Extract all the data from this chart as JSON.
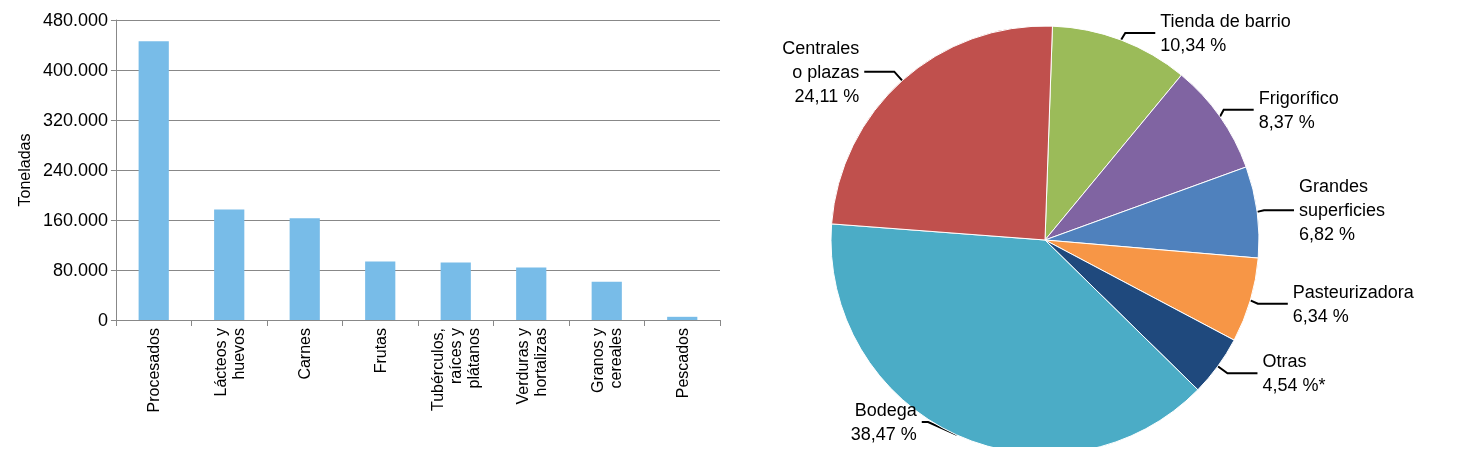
{
  "chart_data": [
    {
      "type": "bar",
      "ylabel": "Toneladas",
      "categories": [
        "Procesados",
        "Lácteos y\nhuevos",
        "Carnes",
        "Frutas",
        "Tubérculos,\nraíces y\nplátanos",
        "Verduras y\nhortalizas",
        "Granos y\ncereales",
        "Pescados"
      ],
      "values": [
        446000,
        177000,
        163000,
        93500,
        92000,
        84000,
        61400,
        5100
      ],
      "color": "#78bce8",
      "ylim": [
        0,
        480000
      ],
      "yticks": [
        {
          "value": 0,
          "label": "0"
        },
        {
          "value": 80000,
          "label": "80.000"
        },
        {
          "value": 160000,
          "label": "160.000"
        },
        {
          "value": 240000,
          "label": "240.000"
        },
        {
          "value": 320000,
          "label": "320.000"
        },
        {
          "value": 400000,
          "label": "400.000"
        },
        {
          "value": 480000,
          "label": "480.000"
        }
      ],
      "grid": "y",
      "legend": false
    },
    {
      "type": "pie",
      "categories": [
        "Tienda de barrio",
        "Frigorífico",
        "Grandes\nsuperficies",
        "Pasteurizadora",
        "Otras",
        "Bodega",
        "Centrales\no plazas"
      ],
      "values": [
        10.34,
        8.37,
        6.82,
        6.34,
        4.54,
        38.47,
        24.11
      ],
      "value_labels": [
        "10,34 %",
        "8,37 %",
        "6,82 %",
        "6,34 %",
        "4,54 %*",
        "38,47 %",
        "24,11 %"
      ],
      "colors": [
        "#9bbb59",
        "#8064a2",
        "#4f81bd",
        "#f79646",
        "#1f497d",
        "#4bacc6",
        "#c0504d"
      ],
      "legend": false
    }
  ]
}
